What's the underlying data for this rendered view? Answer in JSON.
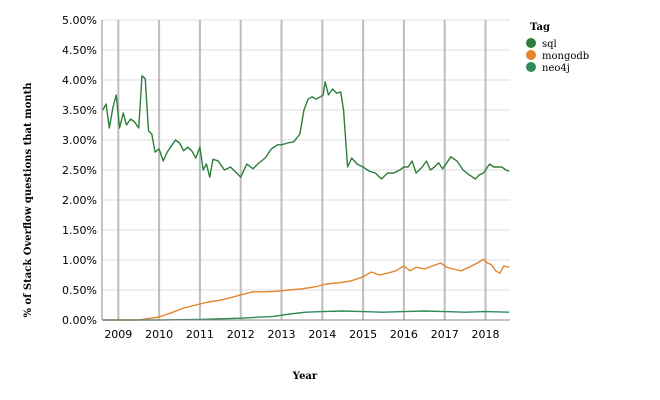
{
  "chart_data": {
    "type": "line",
    "xlabel": "Year",
    "ylabel": "% of Stack Overflow questions that month",
    "xlim": [
      2008.6,
      2018.6
    ],
    "ylim": [
      0,
      5
    ],
    "x_ticks": [
      2009,
      2010,
      2011,
      2012,
      2013,
      2014,
      2015,
      2016,
      2017,
      2018
    ],
    "x_tick_labels": [
      "2009",
      "2010",
      "2011",
      "2012",
      "2013",
      "2014",
      "2015",
      "2016",
      "2017",
      "2018"
    ],
    "y_ticks": [
      0,
      0.5,
      1,
      1.5,
      2,
      2.5,
      3,
      3.5,
      4,
      4.5,
      5
    ],
    "y_tick_labels": [
      "0.00%",
      "0.50%",
      "1.00%",
      "1.50%",
      "2.00%",
      "2.50%",
      "3.00%",
      "3.50%",
      "4.00%",
      "4.50%",
      "5.00%"
    ],
    "grid": true,
    "legend": {
      "title": "Tag",
      "placement": "top-right"
    },
    "series": [
      {
        "name": "sql",
        "color": "#2e7d3a",
        "points": [
          [
            2008.62,
            3.5
          ],
          [
            2008.7,
            3.6
          ],
          [
            2008.78,
            3.2
          ],
          [
            2008.87,
            3.55
          ],
          [
            2008.95,
            3.75
          ],
          [
            2009.03,
            3.2
          ],
          [
            2009.12,
            3.45
          ],
          [
            2009.2,
            3.25
          ],
          [
            2009.3,
            3.35
          ],
          [
            2009.4,
            3.3
          ],
          [
            2009.5,
            3.2
          ],
          [
            2009.58,
            4.07
          ],
          [
            2009.66,
            4.02
          ],
          [
            2009.74,
            3.15
          ],
          [
            2009.82,
            3.1
          ],
          [
            2009.9,
            2.8
          ],
          [
            2010.0,
            2.85
          ],
          [
            2010.1,
            2.65
          ],
          [
            2010.2,
            2.8
          ],
          [
            2010.3,
            2.9
          ],
          [
            2010.4,
            3.0
          ],
          [
            2010.5,
            2.95
          ],
          [
            2010.6,
            2.82
          ],
          [
            2010.7,
            2.88
          ],
          [
            2010.8,
            2.82
          ],
          [
            2010.9,
            2.7
          ],
          [
            2011.0,
            2.88
          ],
          [
            2011.08,
            2.5
          ],
          [
            2011.16,
            2.6
          ],
          [
            2011.24,
            2.38
          ],
          [
            2011.32,
            2.68
          ],
          [
            2011.45,
            2.65
          ],
          [
            2011.6,
            2.5
          ],
          [
            2011.75,
            2.55
          ],
          [
            2011.9,
            2.45
          ],
          [
            2012.0,
            2.38
          ],
          [
            2012.15,
            2.6
          ],
          [
            2012.3,
            2.52
          ],
          [
            2012.45,
            2.62
          ],
          [
            2012.6,
            2.7
          ],
          [
            2012.75,
            2.85
          ],
          [
            2012.9,
            2.92
          ],
          [
            2013.0,
            2.92
          ],
          [
            2013.15,
            2.95
          ],
          [
            2013.3,
            2.97
          ],
          [
            2013.45,
            3.1
          ],
          [
            2013.55,
            3.5
          ],
          [
            2013.65,
            3.68
          ],
          [
            2013.75,
            3.72
          ],
          [
            2013.85,
            3.68
          ],
          [
            2013.95,
            3.72
          ],
          [
            2014.02,
            3.75
          ],
          [
            2014.07,
            3.97
          ],
          [
            2014.15,
            3.75
          ],
          [
            2014.25,
            3.85
          ],
          [
            2014.35,
            3.78
          ],
          [
            2014.45,
            3.8
          ],
          [
            2014.52,
            3.5
          ],
          [
            2014.62,
            2.55
          ],
          [
            2014.72,
            2.7
          ],
          [
            2014.85,
            2.6
          ],
          [
            2015.0,
            2.55
          ],
          [
            2015.15,
            2.48
          ],
          [
            2015.3,
            2.45
          ],
          [
            2015.45,
            2.35
          ],
          [
            2015.6,
            2.45
          ],
          [
            2015.75,
            2.45
          ],
          [
            2015.9,
            2.5
          ],
          [
            2016.0,
            2.55
          ],
          [
            2016.1,
            2.55
          ],
          [
            2016.2,
            2.65
          ],
          [
            2016.3,
            2.45
          ],
          [
            2016.45,
            2.55
          ],
          [
            2016.55,
            2.65
          ],
          [
            2016.65,
            2.5
          ],
          [
            2016.75,
            2.55
          ],
          [
            2016.85,
            2.62
          ],
          [
            2016.95,
            2.52
          ],
          [
            2017.05,
            2.62
          ],
          [
            2017.15,
            2.72
          ],
          [
            2017.3,
            2.65
          ],
          [
            2017.45,
            2.5
          ],
          [
            2017.6,
            2.42
          ],
          [
            2017.75,
            2.35
          ],
          [
            2017.85,
            2.42
          ],
          [
            2017.95,
            2.45
          ],
          [
            2018.05,
            2.55
          ],
          [
            2018.1,
            2.6
          ],
          [
            2018.2,
            2.55
          ],
          [
            2018.3,
            2.55
          ],
          [
            2018.4,
            2.55
          ],
          [
            2018.5,
            2.5
          ],
          [
            2018.58,
            2.48
          ]
        ]
      },
      {
        "name": "mongodb",
        "color": "#e3852b",
        "points": [
          [
            2008.62,
            0.0
          ],
          [
            2009.5,
            0.0
          ],
          [
            2009.8,
            0.03
          ],
          [
            2010.0,
            0.05
          ],
          [
            2010.3,
            0.12
          ],
          [
            2010.6,
            0.2
          ],
          [
            2010.9,
            0.25
          ],
          [
            2011.2,
            0.3
          ],
          [
            2011.5,
            0.33
          ],
          [
            2011.8,
            0.38
          ],
          [
            2012.0,
            0.42
          ],
          [
            2012.3,
            0.47
          ],
          [
            2012.6,
            0.47
          ],
          [
            2012.9,
            0.48
          ],
          [
            2013.2,
            0.5
          ],
          [
            2013.5,
            0.52
          ],
          [
            2013.8,
            0.55
          ],
          [
            2014.1,
            0.6
          ],
          [
            2014.4,
            0.62
          ],
          [
            2014.7,
            0.65
          ],
          [
            2015.0,
            0.72
          ],
          [
            2015.2,
            0.8
          ],
          [
            2015.4,
            0.75
          ],
          [
            2015.6,
            0.78
          ],
          [
            2015.8,
            0.82
          ],
          [
            2016.0,
            0.9
          ],
          [
            2016.15,
            0.82
          ],
          [
            2016.3,
            0.88
          ],
          [
            2016.5,
            0.85
          ],
          [
            2016.7,
            0.9
          ],
          [
            2016.9,
            0.95
          ],
          [
            2017.05,
            0.88
          ],
          [
            2017.2,
            0.85
          ],
          [
            2017.4,
            0.82
          ],
          [
            2017.6,
            0.88
          ],
          [
            2017.8,
            0.95
          ],
          [
            2017.95,
            1.01
          ],
          [
            2018.05,
            0.95
          ],
          [
            2018.15,
            0.92
          ],
          [
            2018.25,
            0.82
          ],
          [
            2018.35,
            0.78
          ],
          [
            2018.45,
            0.9
          ],
          [
            2018.58,
            0.88
          ]
        ]
      },
      {
        "name": "neo4j",
        "color": "#2e8b57",
        "points": [
          [
            2008.62,
            0.0
          ],
          [
            2009.5,
            0.0
          ],
          [
            2010.0,
            0.0
          ],
          [
            2011.0,
            0.01
          ],
          [
            2012.0,
            0.03
          ],
          [
            2012.8,
            0.06
          ],
          [
            2013.2,
            0.1
          ],
          [
            2013.6,
            0.13
          ],
          [
            2014.0,
            0.14
          ],
          [
            2014.5,
            0.15
          ],
          [
            2015.0,
            0.14
          ],
          [
            2015.5,
            0.13
          ],
          [
            2016.0,
            0.14
          ],
          [
            2016.5,
            0.15
          ],
          [
            2017.0,
            0.14
          ],
          [
            2017.5,
            0.13
          ],
          [
            2018.0,
            0.14
          ],
          [
            2018.58,
            0.13
          ]
        ]
      }
    ]
  }
}
